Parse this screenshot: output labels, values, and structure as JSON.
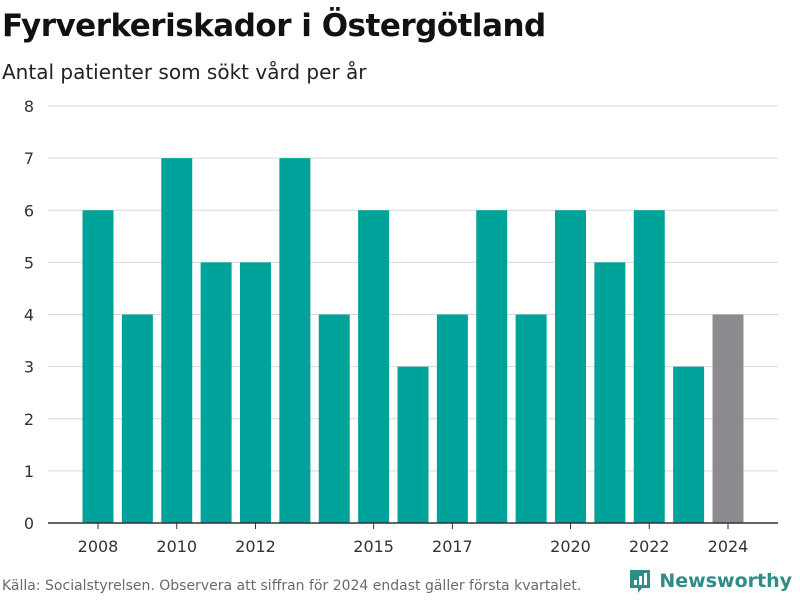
{
  "header": {
    "title": "Fyrverkeriskador i Östergötland",
    "subtitle": "Antal patienter som sökt vård per år"
  },
  "footer": {
    "source": "Källa: Socialstyrelsen. Observera att siffran för 2024 endast gäller första kvartalet.",
    "brand": "Newsworthy"
  },
  "colors": {
    "bar": "#00a399",
    "bar_partial": "#8c8c90",
    "grid": "#d9d9d9",
    "axis": "#333333",
    "brand": "#2f8c87"
  },
  "chart_data": {
    "type": "bar",
    "x": [
      2008,
      2009,
      2010,
      2011,
      2012,
      2013,
      2014,
      2015,
      2016,
      2017,
      2018,
      2019,
      2020,
      2021,
      2022,
      2023,
      2024
    ],
    "values": [
      6,
      4,
      7,
      5,
      5,
      7,
      4,
      6,
      3,
      4,
      6,
      4,
      6,
      5,
      6,
      3,
      4
    ],
    "partial_year": 2024,
    "x_tick_labels": [
      2008,
      2010,
      2012,
      2015,
      2017,
      2020,
      2022,
      2024
    ],
    "y_ticks": [
      0,
      1,
      2,
      3,
      4,
      5,
      6,
      7,
      8
    ],
    "ylim": [
      0,
      8
    ],
    "grid": true,
    "title": "Fyrverkeriskador i Östergötland",
    "subtitle": "Antal patienter som sökt vård per år",
    "xlabel": "",
    "ylabel": ""
  }
}
